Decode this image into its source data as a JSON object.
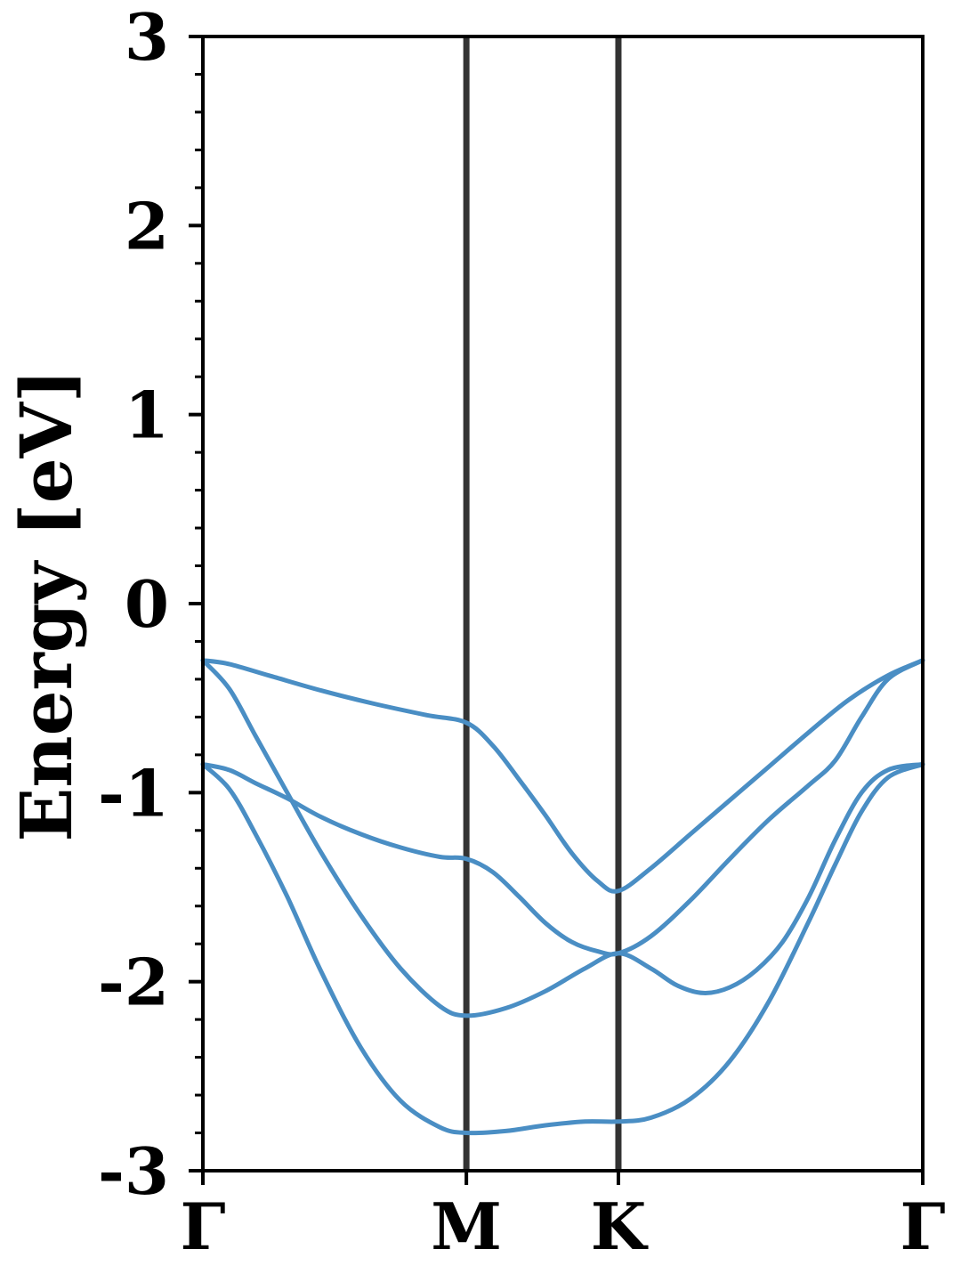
{
  "chart_data": {
    "type": "line",
    "title": "",
    "xlabel": "",
    "ylabel": "Energy [eV]",
    "ylim": [
      -3,
      3
    ],
    "y_ticks": [
      -3,
      -2,
      -1,
      0,
      1,
      2,
      3
    ],
    "y_tick_labels": [
      "-3",
      "-2",
      "-1",
      "0",
      "1",
      "2",
      "3"
    ],
    "y_minor_step": 0.2,
    "k_path": [
      {
        "label": "Γ",
        "x": 0.0
      },
      {
        "label": "M",
        "x": 1.0
      },
      {
        "label": "K",
        "x": 1.577
      },
      {
        "label": "Γ",
        "x": 2.732
      }
    ],
    "line_color": "#4a8ec4",
    "separator_color": "#333333",
    "grid": false,
    "series": [
      {
        "values": [
          {
            "x": 0.0,
            "y": -0.3
          },
          {
            "x": 0.1,
            "y": -0.32
          },
          {
            "x": 0.25,
            "y": -0.38
          },
          {
            "x": 0.45,
            "y": -0.46
          },
          {
            "x": 0.65,
            "y": -0.53
          },
          {
            "x": 0.85,
            "y": -0.59
          },
          {
            "x": 1.0,
            "y": -0.63
          },
          {
            "x": 1.1,
            "y": -0.75
          },
          {
            "x": 1.2,
            "y": -0.93
          },
          {
            "x": 1.3,
            "y": -1.12
          },
          {
            "x": 1.4,
            "y": -1.32
          },
          {
            "x": 1.5,
            "y": -1.47
          },
          {
            "x": 1.577,
            "y": -1.52
          },
          {
            "x": 1.7,
            "y": -1.4
          },
          {
            "x": 1.85,
            "y": -1.22
          },
          {
            "x": 2.0,
            "y": -1.04
          },
          {
            "x": 2.15,
            "y": -0.86
          },
          {
            "x": 2.3,
            "y": -0.68
          },
          {
            "x": 2.45,
            "y": -0.51
          },
          {
            "x": 2.6,
            "y": -0.38
          },
          {
            "x": 2.732,
            "y": -0.3
          }
        ]
      },
      {
        "values": [
          {
            "x": 0.0,
            "y": -0.3
          },
          {
            "x": 0.1,
            "y": -0.45
          },
          {
            "x": 0.2,
            "y": -0.7
          },
          {
            "x": 0.32,
            "y": -1.0
          },
          {
            "x": 0.45,
            "y": -1.32
          },
          {
            "x": 0.6,
            "y": -1.65
          },
          {
            "x": 0.75,
            "y": -1.93
          },
          {
            "x": 0.9,
            "y": -2.13
          },
          {
            "x": 1.0,
            "y": -2.18
          },
          {
            "x": 1.15,
            "y": -2.14
          },
          {
            "x": 1.3,
            "y": -2.05
          },
          {
            "x": 1.45,
            "y": -1.93
          },
          {
            "x": 1.577,
            "y": -1.85
          },
          {
            "x": 1.7,
            "y": -1.93
          },
          {
            "x": 1.8,
            "y": -2.02
          },
          {
            "x": 1.9,
            "y": -2.06
          },
          {
            "x": 2.0,
            "y": -2.03
          },
          {
            "x": 2.1,
            "y": -1.94
          },
          {
            "x": 2.2,
            "y": -1.79
          },
          {
            "x": 2.3,
            "y": -1.55
          },
          {
            "x": 2.4,
            "y": -1.25
          },
          {
            "x": 2.5,
            "y": -1.0
          },
          {
            "x": 2.6,
            "y": -0.88
          },
          {
            "x": 2.732,
            "y": -0.85
          }
        ]
      },
      {
        "values": [
          {
            "x": 0.0,
            "y": -0.85
          },
          {
            "x": 0.1,
            "y": -0.88
          },
          {
            "x": 0.2,
            "y": -0.95
          },
          {
            "x": 0.32,
            "y": -1.03
          },
          {
            "x": 0.45,
            "y": -1.13
          },
          {
            "x": 0.6,
            "y": -1.22
          },
          {
            "x": 0.75,
            "y": -1.29
          },
          {
            "x": 0.9,
            "y": -1.34
          },
          {
            "x": 1.0,
            "y": -1.35
          },
          {
            "x": 1.1,
            "y": -1.42
          },
          {
            "x": 1.2,
            "y": -1.55
          },
          {
            "x": 1.3,
            "y": -1.69
          },
          {
            "x": 1.4,
            "y": -1.79
          },
          {
            "x": 1.5,
            "y": -1.84
          },
          {
            "x": 1.577,
            "y": -1.85
          },
          {
            "x": 1.7,
            "y": -1.76
          },
          {
            "x": 1.85,
            "y": -1.57
          },
          {
            "x": 2.0,
            "y": -1.35
          },
          {
            "x": 2.15,
            "y": -1.14
          },
          {
            "x": 2.3,
            "y": -0.96
          },
          {
            "x": 2.4,
            "y": -0.83
          },
          {
            "x": 2.5,
            "y": -0.6
          },
          {
            "x": 2.6,
            "y": -0.4
          },
          {
            "x": 2.732,
            "y": -0.3
          }
        ]
      },
      {
        "values": [
          {
            "x": 0.0,
            "y": -0.85
          },
          {
            "x": 0.1,
            "y": -0.98
          },
          {
            "x": 0.2,
            "y": -1.22
          },
          {
            "x": 0.32,
            "y": -1.55
          },
          {
            "x": 0.45,
            "y": -1.95
          },
          {
            "x": 0.6,
            "y": -2.35
          },
          {
            "x": 0.75,
            "y": -2.63
          },
          {
            "x": 0.9,
            "y": -2.77
          },
          {
            "x": 1.0,
            "y": -2.8
          },
          {
            "x": 1.15,
            "y": -2.79
          },
          {
            "x": 1.3,
            "y": -2.76
          },
          {
            "x": 1.45,
            "y": -2.74
          },
          {
            "x": 1.577,
            "y": -2.74
          },
          {
            "x": 1.7,
            "y": -2.72
          },
          {
            "x": 1.85,
            "y": -2.62
          },
          {
            "x": 2.0,
            "y": -2.42
          },
          {
            "x": 2.15,
            "y": -2.1
          },
          {
            "x": 2.3,
            "y": -1.68
          },
          {
            "x": 2.4,
            "y": -1.38
          },
          {
            "x": 2.5,
            "y": -1.1
          },
          {
            "x": 2.6,
            "y": -0.92
          },
          {
            "x": 2.732,
            "y": -0.85
          }
        ]
      }
    ]
  }
}
